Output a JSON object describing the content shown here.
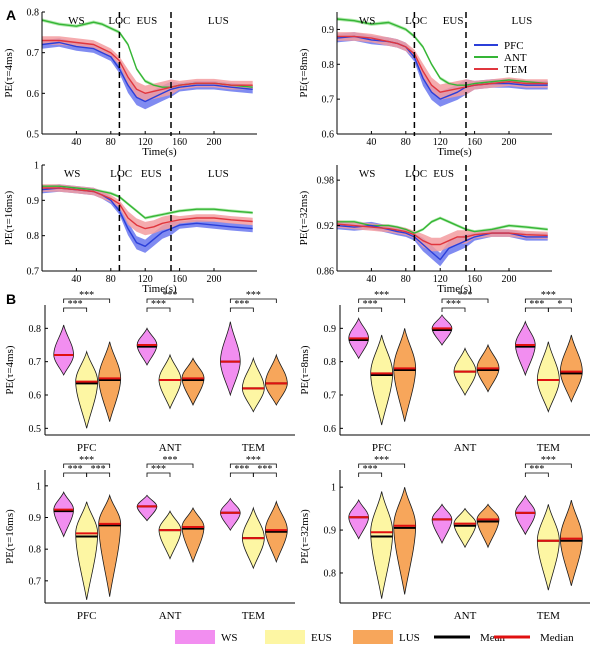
{
  "panel_labels": [
    "A",
    "B"
  ],
  "chart_data": [
    {
      "type": "line",
      "group": "A",
      "ylabel": "PE(τ=4ms)",
      "xlabel": "Time(s)",
      "xlim": [
        0,
        250
      ],
      "xticks": [
        40,
        80,
        120,
        160,
        200
      ],
      "ylim": [
        0.5,
        0.8
      ],
      "yticks": [
        0.5,
        0.6,
        0.7,
        0.8
      ],
      "vlines": [
        90,
        150
      ],
      "phase_labels": [
        {
          "text": "WS",
          "x": 40
        },
        {
          "text": "LOC",
          "x": 90
        },
        {
          "text": "EUS",
          "x": 122
        },
        {
          "text": "LUS",
          "x": 205
        }
      ],
      "x": [
        0,
        20,
        40,
        60,
        70,
        80,
        90,
        100,
        110,
        120,
        130,
        140,
        150,
        160,
        180,
        200,
        220,
        245
      ],
      "series": [
        {
          "name": "PFC",
          "values": [
            0.72,
            0.725,
            0.715,
            0.71,
            0.7,
            0.69,
            0.66,
            0.62,
            0.59,
            0.58,
            0.59,
            0.6,
            0.61,
            0.615,
            0.62,
            0.62,
            0.615,
            0.61
          ]
        },
        {
          "name": "ANT",
          "values": [
            0.78,
            0.77,
            0.765,
            0.775,
            0.77,
            0.76,
            0.75,
            0.72,
            0.66,
            0.63,
            0.62,
            0.615,
            0.615,
            0.62,
            0.625,
            0.625,
            0.62,
            0.615
          ]
        },
        {
          "name": "TEM",
          "values": [
            0.73,
            0.73,
            0.725,
            0.72,
            0.71,
            0.7,
            0.68,
            0.64,
            0.61,
            0.6,
            0.605,
            0.61,
            0.615,
            0.62,
            0.625,
            0.625,
            0.62,
            0.62
          ]
        }
      ]
    },
    {
      "type": "line",
      "group": "A",
      "ylabel": "PE(τ=8ms)",
      "xlabel": "Time(s)",
      "xlim": [
        0,
        250
      ],
      "xticks": [
        40,
        80,
        120,
        160,
        200
      ],
      "ylim": [
        0.6,
        0.95
      ],
      "yticks": [
        0.6,
        0.7,
        0.8,
        0.9
      ],
      "vlines": [
        90,
        150
      ],
      "phase_labels": [
        {
          "text": "WS",
          "x": 35
        },
        {
          "text": "LOC",
          "x": 92
        },
        {
          "text": "EUS",
          "x": 135
        },
        {
          "text": "LUS",
          "x": 215
        }
      ],
      "legend": "top-right",
      "x": [
        0,
        20,
        40,
        60,
        70,
        80,
        90,
        100,
        110,
        120,
        130,
        140,
        150,
        160,
        180,
        200,
        220,
        245
      ],
      "series": [
        {
          "name": "PFC",
          "values": [
            0.875,
            0.88,
            0.87,
            0.865,
            0.86,
            0.85,
            0.82,
            0.76,
            0.72,
            0.7,
            0.71,
            0.72,
            0.735,
            0.74,
            0.745,
            0.745,
            0.74,
            0.74
          ]
        },
        {
          "name": "ANT",
          "values": [
            0.93,
            0.925,
            0.915,
            0.92,
            0.91,
            0.9,
            0.88,
            0.85,
            0.8,
            0.76,
            0.745,
            0.74,
            0.74,
            0.745,
            0.75,
            0.755,
            0.75,
            0.745
          ]
        },
        {
          "name": "TEM",
          "values": [
            0.88,
            0.88,
            0.875,
            0.865,
            0.86,
            0.85,
            0.83,
            0.78,
            0.74,
            0.72,
            0.725,
            0.73,
            0.735,
            0.74,
            0.745,
            0.75,
            0.745,
            0.745
          ]
        }
      ]
    },
    {
      "type": "line",
      "group": "A",
      "ylabel": "PE(τ=16ms)",
      "xlabel": "Time(s)",
      "xlim": [
        0,
        250
      ],
      "xticks": [
        40,
        80,
        120,
        160,
        200
      ],
      "ylim": [
        0.7,
        1.0
      ],
      "yticks": [
        0.7,
        0.8,
        0.9,
        1.0
      ],
      "ytick_labels": [
        "0.7",
        "0.8",
        "0.9",
        "1"
      ],
      "vlines": [
        90,
        150
      ],
      "phase_labels": [
        {
          "text": "WS",
          "x": 35
        },
        {
          "text": "LOC",
          "x": 92
        },
        {
          "text": "EUS",
          "x": 127
        },
        {
          "text": "LUS",
          "x": 205
        }
      ],
      "x": [
        0,
        20,
        40,
        60,
        70,
        80,
        90,
        100,
        110,
        120,
        130,
        140,
        150,
        160,
        180,
        200,
        220,
        245
      ],
      "series": [
        {
          "name": "PFC",
          "values": [
            0.93,
            0.935,
            0.93,
            0.925,
            0.915,
            0.9,
            0.87,
            0.82,
            0.78,
            0.77,
            0.79,
            0.81,
            0.82,
            0.83,
            0.835,
            0.83,
            0.825,
            0.82
          ]
        },
        {
          "name": "ANT",
          "values": [
            0.94,
            0.94,
            0.935,
            0.93,
            0.925,
            0.92,
            0.91,
            0.89,
            0.87,
            0.85,
            0.855,
            0.86,
            0.865,
            0.87,
            0.875,
            0.875,
            0.87,
            0.865
          ]
        },
        {
          "name": "TEM",
          "values": [
            0.935,
            0.935,
            0.93,
            0.925,
            0.915,
            0.905,
            0.89,
            0.85,
            0.83,
            0.82,
            0.825,
            0.835,
            0.84,
            0.845,
            0.85,
            0.85,
            0.845,
            0.84
          ]
        }
      ]
    },
    {
      "type": "line",
      "group": "A",
      "ylabel": "PE(τ=32ms)",
      "xlabel": "Time(s)",
      "xlim": [
        0,
        250
      ],
      "xticks": [
        40,
        80,
        120,
        160,
        200
      ],
      "ylim": [
        0.86,
        1.0
      ],
      "yticks": [
        0.86,
        0.92,
        0.98
      ],
      "vlines": [
        90,
        150
      ],
      "phase_labels": [
        {
          "text": "WS",
          "x": 35
        },
        {
          "text": "LOC",
          "x": 92
        },
        {
          "text": "EUS",
          "x": 124
        }
      ],
      "x": [
        0,
        20,
        40,
        60,
        70,
        80,
        90,
        100,
        110,
        120,
        130,
        140,
        150,
        160,
        180,
        200,
        220,
        245
      ],
      "series": [
        {
          "name": "PFC",
          "values": [
            0.92,
            0.918,
            0.92,
            0.915,
            0.912,
            0.91,
            0.905,
            0.895,
            0.885,
            0.875,
            0.89,
            0.895,
            0.9,
            0.905,
            0.91,
            0.91,
            0.905,
            0.905
          ]
        },
        {
          "name": "ANT",
          "values": [
            0.925,
            0.925,
            0.92,
            0.92,
            0.918,
            0.915,
            0.91,
            0.915,
            0.925,
            0.93,
            0.925,
            0.92,
            0.915,
            0.912,
            0.915,
            0.92,
            0.918,
            0.915
          ]
        },
        {
          "name": "TEM",
          "values": [
            0.922,
            0.92,
            0.918,
            0.916,
            0.914,
            0.912,
            0.908,
            0.9,
            0.895,
            0.895,
            0.9,
            0.905,
            0.905,
            0.908,
            0.91,
            0.91,
            0.908,
            0.907
          ]
        }
      ]
    },
    {
      "type": "violin",
      "group": "B",
      "ylabel": "PE(τ=4ms)",
      "ylim": [
        0.48,
        0.87
      ],
      "yticks": [
        0.5,
        0.6,
        0.7,
        0.8
      ],
      "categories": [
        "PFC",
        "ANT",
        "TEM"
      ],
      "series": [
        {
          "name": "WS",
          "min": [
            0.66,
            0.69,
            0.6
          ],
          "max": [
            0.81,
            0.8,
            0.82
          ],
          "median": [
            0.72,
            0.75,
            0.7
          ],
          "mean": [
            0.72,
            0.745,
            0.7
          ]
        },
        {
          "name": "EUS",
          "min": [
            0.5,
            0.56,
            0.55
          ],
          "max": [
            0.73,
            0.72,
            0.71
          ],
          "median": [
            0.64,
            0.645,
            0.62
          ],
          "mean": [
            0.635,
            0.645,
            0.62
          ]
        },
        {
          "name": "LUS",
          "min": [
            0.52,
            0.57,
            0.57
          ],
          "max": [
            0.76,
            0.71,
            0.72
          ],
          "median": [
            0.65,
            0.65,
            0.635
          ],
          "mean": [
            0.645,
            0.645,
            0.635
          ]
        }
      ],
      "significance": [
        {
          "category": "PFC",
          "pair": [
            "WS",
            "EUS"
          ],
          "label": "***"
        },
        {
          "category": "PFC",
          "pair": [
            "WS",
            "LUS"
          ],
          "label": "***"
        },
        {
          "category": "ANT",
          "pair": [
            "WS",
            "EUS"
          ],
          "label": "***"
        },
        {
          "category": "ANT",
          "pair": [
            "WS",
            "LUS"
          ],
          "label": "***"
        },
        {
          "category": "TEM",
          "pair": [
            "WS",
            "EUS"
          ],
          "label": "***"
        },
        {
          "category": "TEM",
          "pair": [
            "WS",
            "LUS"
          ],
          "label": "***"
        }
      ]
    },
    {
      "type": "violin",
      "group": "B",
      "ylabel": "PE(τ=8ms)",
      "ylim": [
        0.58,
        0.97
      ],
      "yticks": [
        0.6,
        0.7,
        0.8,
        0.9
      ],
      "categories": [
        "PFC",
        "ANT",
        "TEM"
      ],
      "series": [
        {
          "name": "WS",
          "min": [
            0.81,
            0.85,
            0.76
          ],
          "max": [
            0.93,
            0.94,
            0.92
          ],
          "median": [
            0.87,
            0.9,
            0.85
          ],
          "mean": [
            0.865,
            0.895,
            0.845
          ]
        },
        {
          "name": "EUS",
          "min": [
            0.61,
            0.7,
            0.65
          ],
          "max": [
            0.88,
            0.84,
            0.86
          ],
          "median": [
            0.765,
            0.77,
            0.745
          ],
          "mean": [
            0.76,
            0.77,
            0.745
          ]
        },
        {
          "name": "LUS",
          "min": [
            0.62,
            0.71,
            0.68
          ],
          "max": [
            0.9,
            0.85,
            0.88
          ],
          "median": [
            0.78,
            0.78,
            0.77
          ],
          "mean": [
            0.775,
            0.775,
            0.765
          ]
        }
      ],
      "significance": [
        {
          "category": "PFC",
          "pair": [
            "WS",
            "EUS"
          ],
          "label": "***"
        },
        {
          "category": "PFC",
          "pair": [
            "WS",
            "LUS"
          ],
          "label": "***"
        },
        {
          "category": "ANT",
          "pair": [
            "WS",
            "EUS"
          ],
          "label": "***"
        },
        {
          "category": "ANT",
          "pair": [
            "WS",
            "LUS"
          ],
          "label": "***"
        },
        {
          "category": "TEM",
          "pair": [
            "WS",
            "EUS"
          ],
          "label": "***"
        },
        {
          "category": "TEM",
          "pair": [
            "WS",
            "LUS"
          ],
          "label": "***"
        },
        {
          "category": "TEM",
          "pair": [
            "EUS",
            "LUS"
          ],
          "label": "*"
        }
      ]
    },
    {
      "type": "violin",
      "group": "B",
      "ylabel": "PE(τ=16ms)",
      "ylim": [
        0.63,
        1.05
      ],
      "yticks": [
        0.7,
        0.8,
        0.9,
        1.0
      ],
      "ytick_labels": [
        "0.7",
        "0.8",
        "0.9",
        "1"
      ],
      "categories": [
        "PFC",
        "ANT",
        "TEM"
      ],
      "series": [
        {
          "name": "WS",
          "min": [
            0.84,
            0.89,
            0.86
          ],
          "max": [
            0.98,
            0.97,
            0.96
          ],
          "median": [
            0.925,
            0.935,
            0.915
          ],
          "mean": [
            0.92,
            0.935,
            0.915
          ]
        },
        {
          "name": "EUS",
          "min": [
            0.64,
            0.77,
            0.74
          ],
          "max": [
            0.95,
            0.92,
            0.93
          ],
          "median": [
            0.85,
            0.86,
            0.835
          ],
          "mean": [
            0.84,
            0.86,
            0.835
          ]
        },
        {
          "name": "LUS",
          "min": [
            0.65,
            0.76,
            0.76
          ],
          "max": [
            0.97,
            0.93,
            0.95
          ],
          "median": [
            0.88,
            0.87,
            0.86
          ],
          "mean": [
            0.875,
            0.865,
            0.855
          ]
        }
      ],
      "significance": [
        {
          "category": "PFC",
          "pair": [
            "WS",
            "EUS"
          ],
          "label": "***"
        },
        {
          "category": "PFC",
          "pair": [
            "WS",
            "LUS"
          ],
          "label": "***"
        },
        {
          "category": "PFC",
          "pair": [
            "EUS",
            "LUS"
          ],
          "label": "***"
        },
        {
          "category": "ANT",
          "pair": [
            "WS",
            "EUS"
          ],
          "label": "***"
        },
        {
          "category": "ANT",
          "pair": [
            "WS",
            "LUS"
          ],
          "label": "***"
        },
        {
          "category": "TEM",
          "pair": [
            "WS",
            "EUS"
          ],
          "label": "***"
        },
        {
          "category": "TEM",
          "pair": [
            "WS",
            "LUS"
          ],
          "label": "***"
        },
        {
          "category": "TEM",
          "pair": [
            "EUS",
            "LUS"
          ],
          "label": "***"
        }
      ]
    },
    {
      "type": "violin",
      "group": "B",
      "ylabel": "PE(τ=32ms)",
      "ylim": [
        0.73,
        1.04
      ],
      "yticks": [
        0.8,
        0.9,
        1.0
      ],
      "ytick_labels": [
        "0.8",
        "0.9",
        "1"
      ],
      "categories": [
        "PFC",
        "ANT",
        "TEM"
      ],
      "series": [
        {
          "name": "WS",
          "min": [
            0.88,
            0.87,
            0.89
          ],
          "max": [
            0.97,
            0.96,
            0.98
          ],
          "median": [
            0.93,
            0.925,
            0.94
          ],
          "mean": [
            0.93,
            0.925,
            0.94
          ]
        },
        {
          "name": "EUS",
          "min": [
            0.74,
            0.86,
            0.76
          ],
          "max": [
            0.99,
            0.95,
            0.96
          ],
          "median": [
            0.895,
            0.915,
            0.875
          ],
          "mean": [
            0.885,
            0.91,
            0.875
          ]
        },
        {
          "name": "LUS",
          "min": [
            0.75,
            0.86,
            0.77
          ],
          "max": [
            1.0,
            0.96,
            0.97
          ],
          "median": [
            0.91,
            0.925,
            0.88
          ],
          "mean": [
            0.905,
            0.92,
            0.875
          ]
        }
      ],
      "significance": [
        {
          "category": "PFC",
          "pair": [
            "WS",
            "EUS"
          ],
          "label": "***"
        },
        {
          "category": "PFC",
          "pair": [
            "WS",
            "LUS"
          ],
          "label": "***"
        },
        {
          "category": "TEM",
          "pair": [
            "WS",
            "EUS"
          ],
          "label": "***"
        },
        {
          "category": "TEM",
          "pair": [
            "WS",
            "LUS"
          ],
          "label": "***"
        }
      ]
    }
  ],
  "line_colors": {
    "PFC": "#2b3fd9",
    "ANT": "#35b536",
    "TEM": "#e0363e"
  },
  "band_colors": {
    "PFC": "#6a77ee",
    "ANT": "#a6e6a0",
    "TEM": "#f39ca0"
  },
  "violin_colors": {
    "WS": "#f28ef0",
    "EUS": "#fdf6a3",
    "LUS": "#f7a65b"
  },
  "bottom_legend": [
    {
      "label": "WS",
      "kind": "patch",
      "color": "#f28ef0"
    },
    {
      "label": "EUS",
      "kind": "patch",
      "color": "#fdf6a3"
    },
    {
      "label": "LUS",
      "kind": "patch",
      "color": "#f7a65b"
    },
    {
      "label": "Mean",
      "kind": "line",
      "color": "#000000"
    },
    {
      "label": "Median",
      "kind": "line",
      "color": "#e01010"
    }
  ]
}
